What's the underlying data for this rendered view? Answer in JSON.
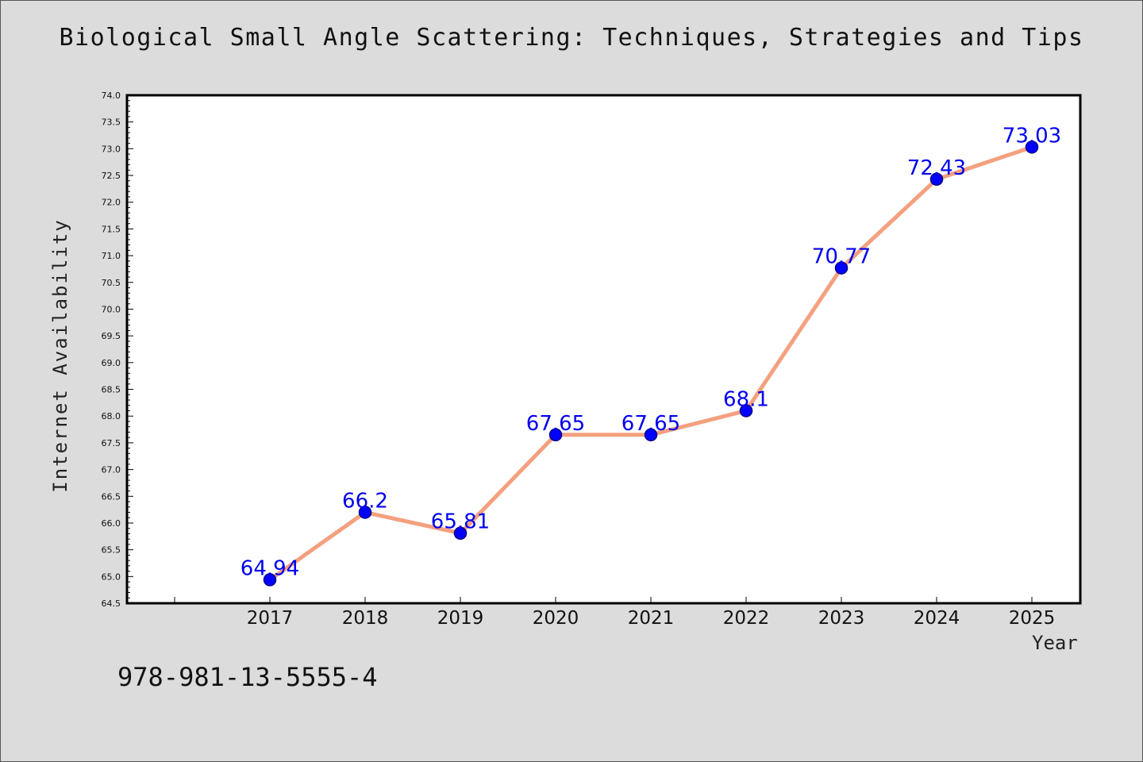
{
  "chart_data": {
    "type": "line",
    "title": "Biological Small Angle Scattering: Techniques, Strategies and Tips",
    "xlabel": "Year",
    "ylabel": "Internet Availability",
    "categories": [
      "2017",
      "2018",
      "2019",
      "2020",
      "2021",
      "2022",
      "2023",
      "2024",
      "2025"
    ],
    "values": [
      64.94,
      66.2,
      65.81,
      67.65,
      67.65,
      68.1,
      70.77,
      72.43,
      73.03
    ],
    "data_labels": [
      "64.94",
      "66.2",
      "65.81",
      "67.65",
      "67.65",
      "68.1",
      "70.77",
      "72.43",
      "73.03"
    ],
    "ylim": [
      64.5,
      74.0
    ],
    "ytick_step": 0.5,
    "grid": false,
    "colors": {
      "line": "#f4a07f",
      "marker_fill": "#0000ff",
      "marker_edge": "#00008b",
      "data_label": "#0000ee"
    }
  },
  "footnote": "978-981-13-5555-4"
}
